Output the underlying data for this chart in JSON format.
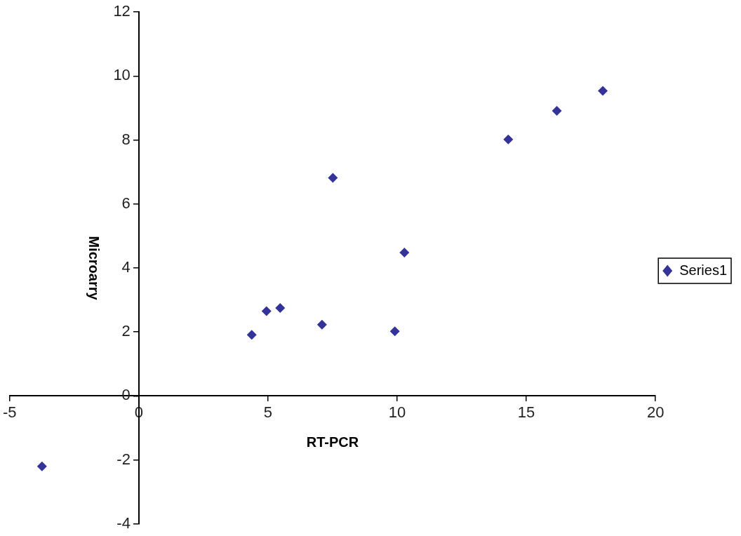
{
  "chart_data": {
    "type": "scatter",
    "xlabel": "RT-PCR",
    "ylabel": "Microarry",
    "xlim": [
      -5,
      20
    ],
    "xticks": [
      -5,
      0,
      5,
      10,
      15,
      20
    ],
    "ylim": [
      -4,
      12
    ],
    "yticks": [
      -4,
      -2,
      0,
      2,
      4,
      6,
      8,
      10,
      12
    ],
    "grid": false,
    "legend": "right",
    "marker": "diamond",
    "series": [
      {
        "name": "Series1",
        "color": "#333399",
        "x": [
          -3.75,
          4.37,
          4.94,
          5.47,
          7.09,
          9.91,
          7.51,
          10.28,
          14.3,
          16.18,
          17.96
        ],
        "values": [
          -2.2,
          1.91,
          2.65,
          2.75,
          2.23,
          2.02,
          6.82,
          4.48,
          8.02,
          8.91,
          9.54
        ]
      }
    ]
  }
}
